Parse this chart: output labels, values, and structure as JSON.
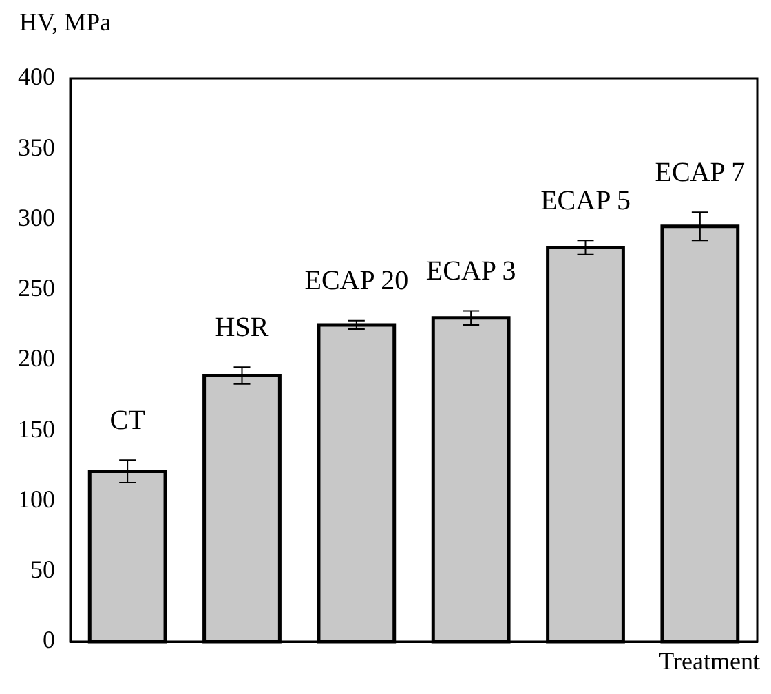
{
  "chart_data": {
    "type": "bar",
    "xlabel": "Treatment",
    "ylabel": "HV, MPa",
    "categories": [
      "CT",
      "HSR",
      "ECAP 20",
      "ECAP 3",
      "ECAP 5",
      "ECAP 7"
    ],
    "values": [
      121,
      189,
      225,
      230,
      280,
      295
    ],
    "errors": [
      8,
      6,
      3,
      5,
      5,
      10
    ],
    "color": "#c8c8c8",
    "ylim": [
      0,
      400
    ],
    "yticks": [
      0,
      50,
      100,
      150,
      200,
      250,
      300,
      350,
      400
    ],
    "tick_labels": "y",
    "grid": false,
    "legend": false
  }
}
